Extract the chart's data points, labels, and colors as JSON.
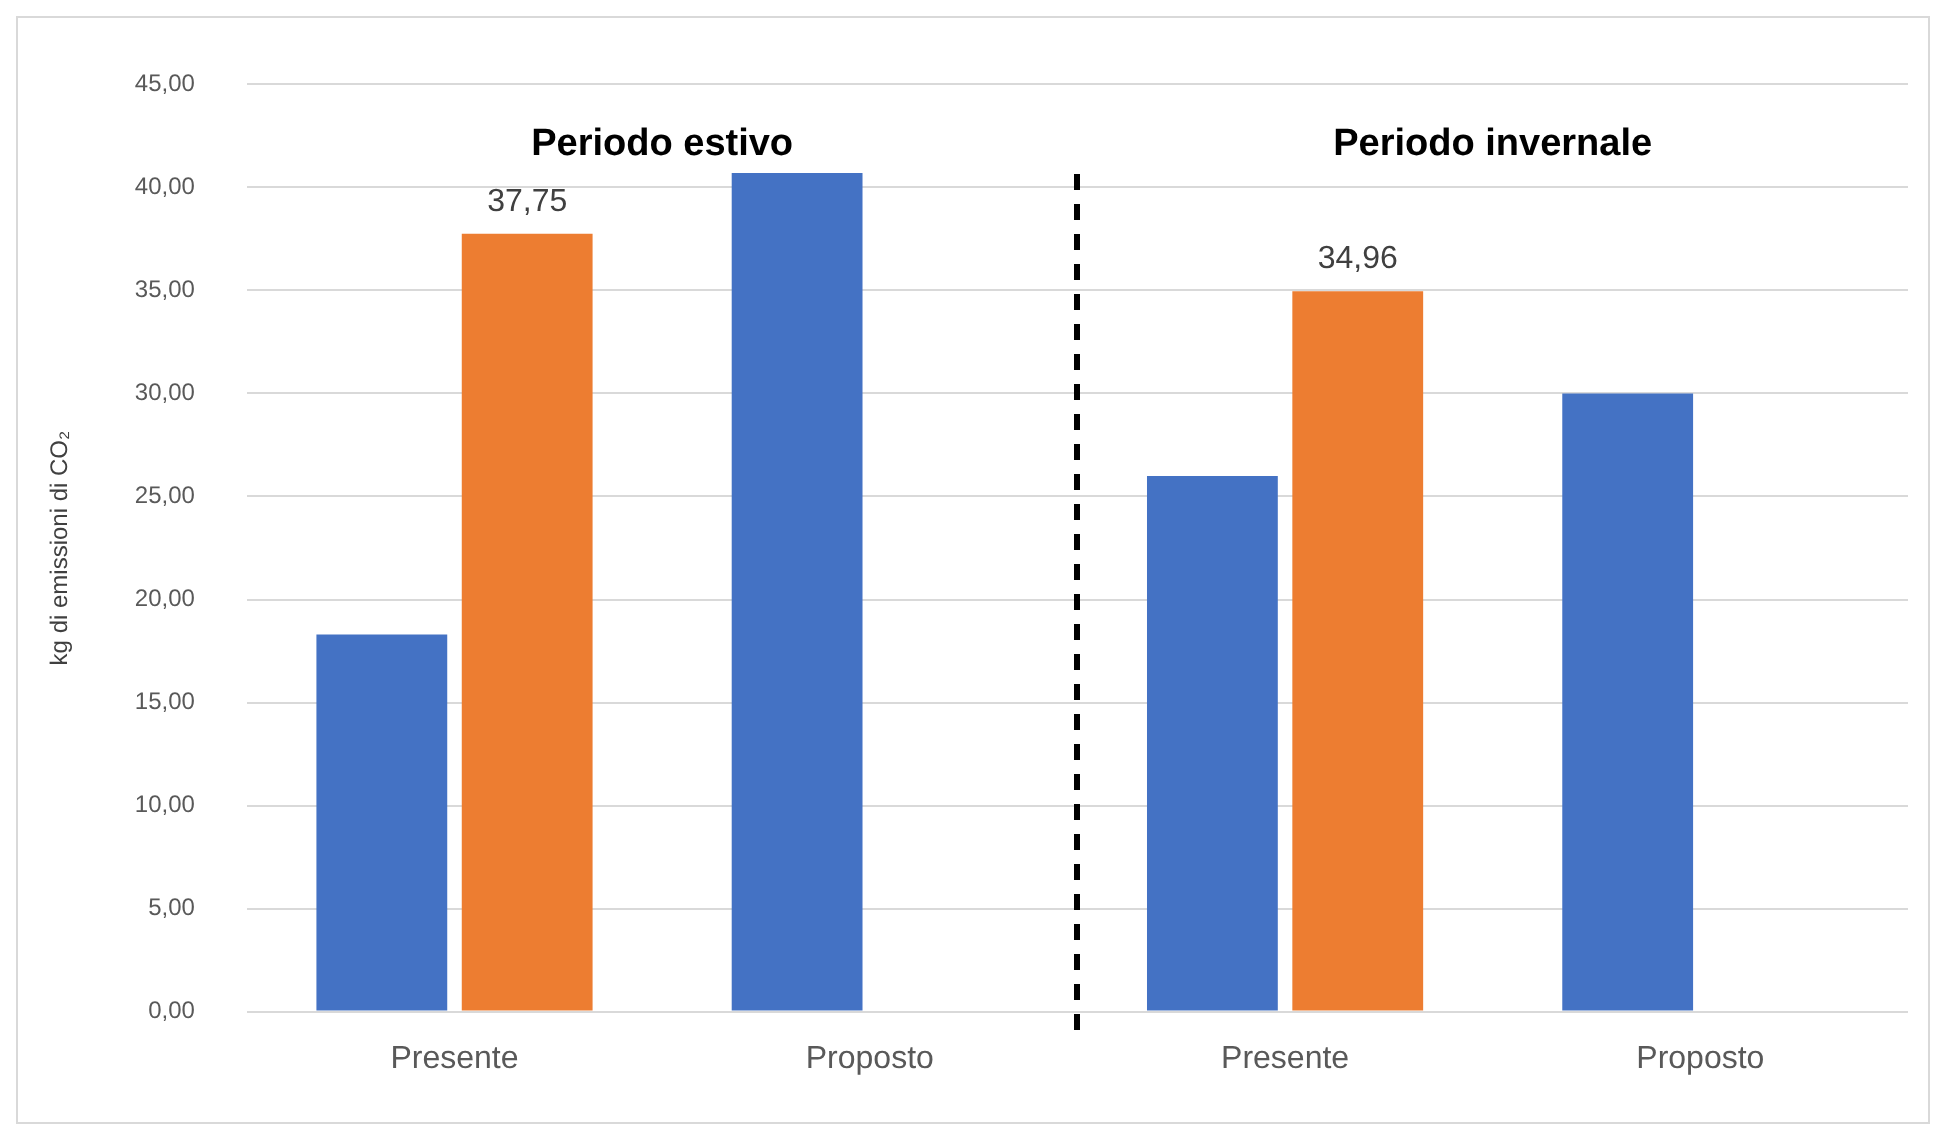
{
  "chart_data": {
    "type": "bar",
    "ylabel": "kg di emissioni di CO₂",
    "categories": [
      "Presente",
      "Proposto",
      "Presente",
      "Proposto"
    ],
    "series": [
      {
        "color": "#4472c4",
        "values": [
          18.3,
          40.7,
          26.0,
          30.0
        ]
      },
      {
        "color": "#ed7d31",
        "values": [
          37.75,
          null,
          34.96,
          null
        ],
        "value_labels": [
          "37,75",
          null,
          "34,96",
          null
        ]
      }
    ],
    "ylim": [
      0,
      45
    ],
    "yticks": [
      {
        "value": 0,
        "label": "0,00"
      },
      {
        "value": 5,
        "label": "5,00"
      },
      {
        "value": 10,
        "label": "10,00"
      },
      {
        "value": 15,
        "label": "15,00"
      },
      {
        "value": 20,
        "label": "20,00"
      },
      {
        "value": 25,
        "label": "25,00"
      },
      {
        "value": 30,
        "label": "30,00"
      },
      {
        "value": 35,
        "label": "35,00"
      },
      {
        "value": 40,
        "label": "40,00"
      },
      {
        "value": 45,
        "label": "45,00"
      }
    ],
    "grid": "y",
    "legend": false,
    "annotations": [
      "Periodo estivo",
      "Periodo invernale"
    ]
  }
}
